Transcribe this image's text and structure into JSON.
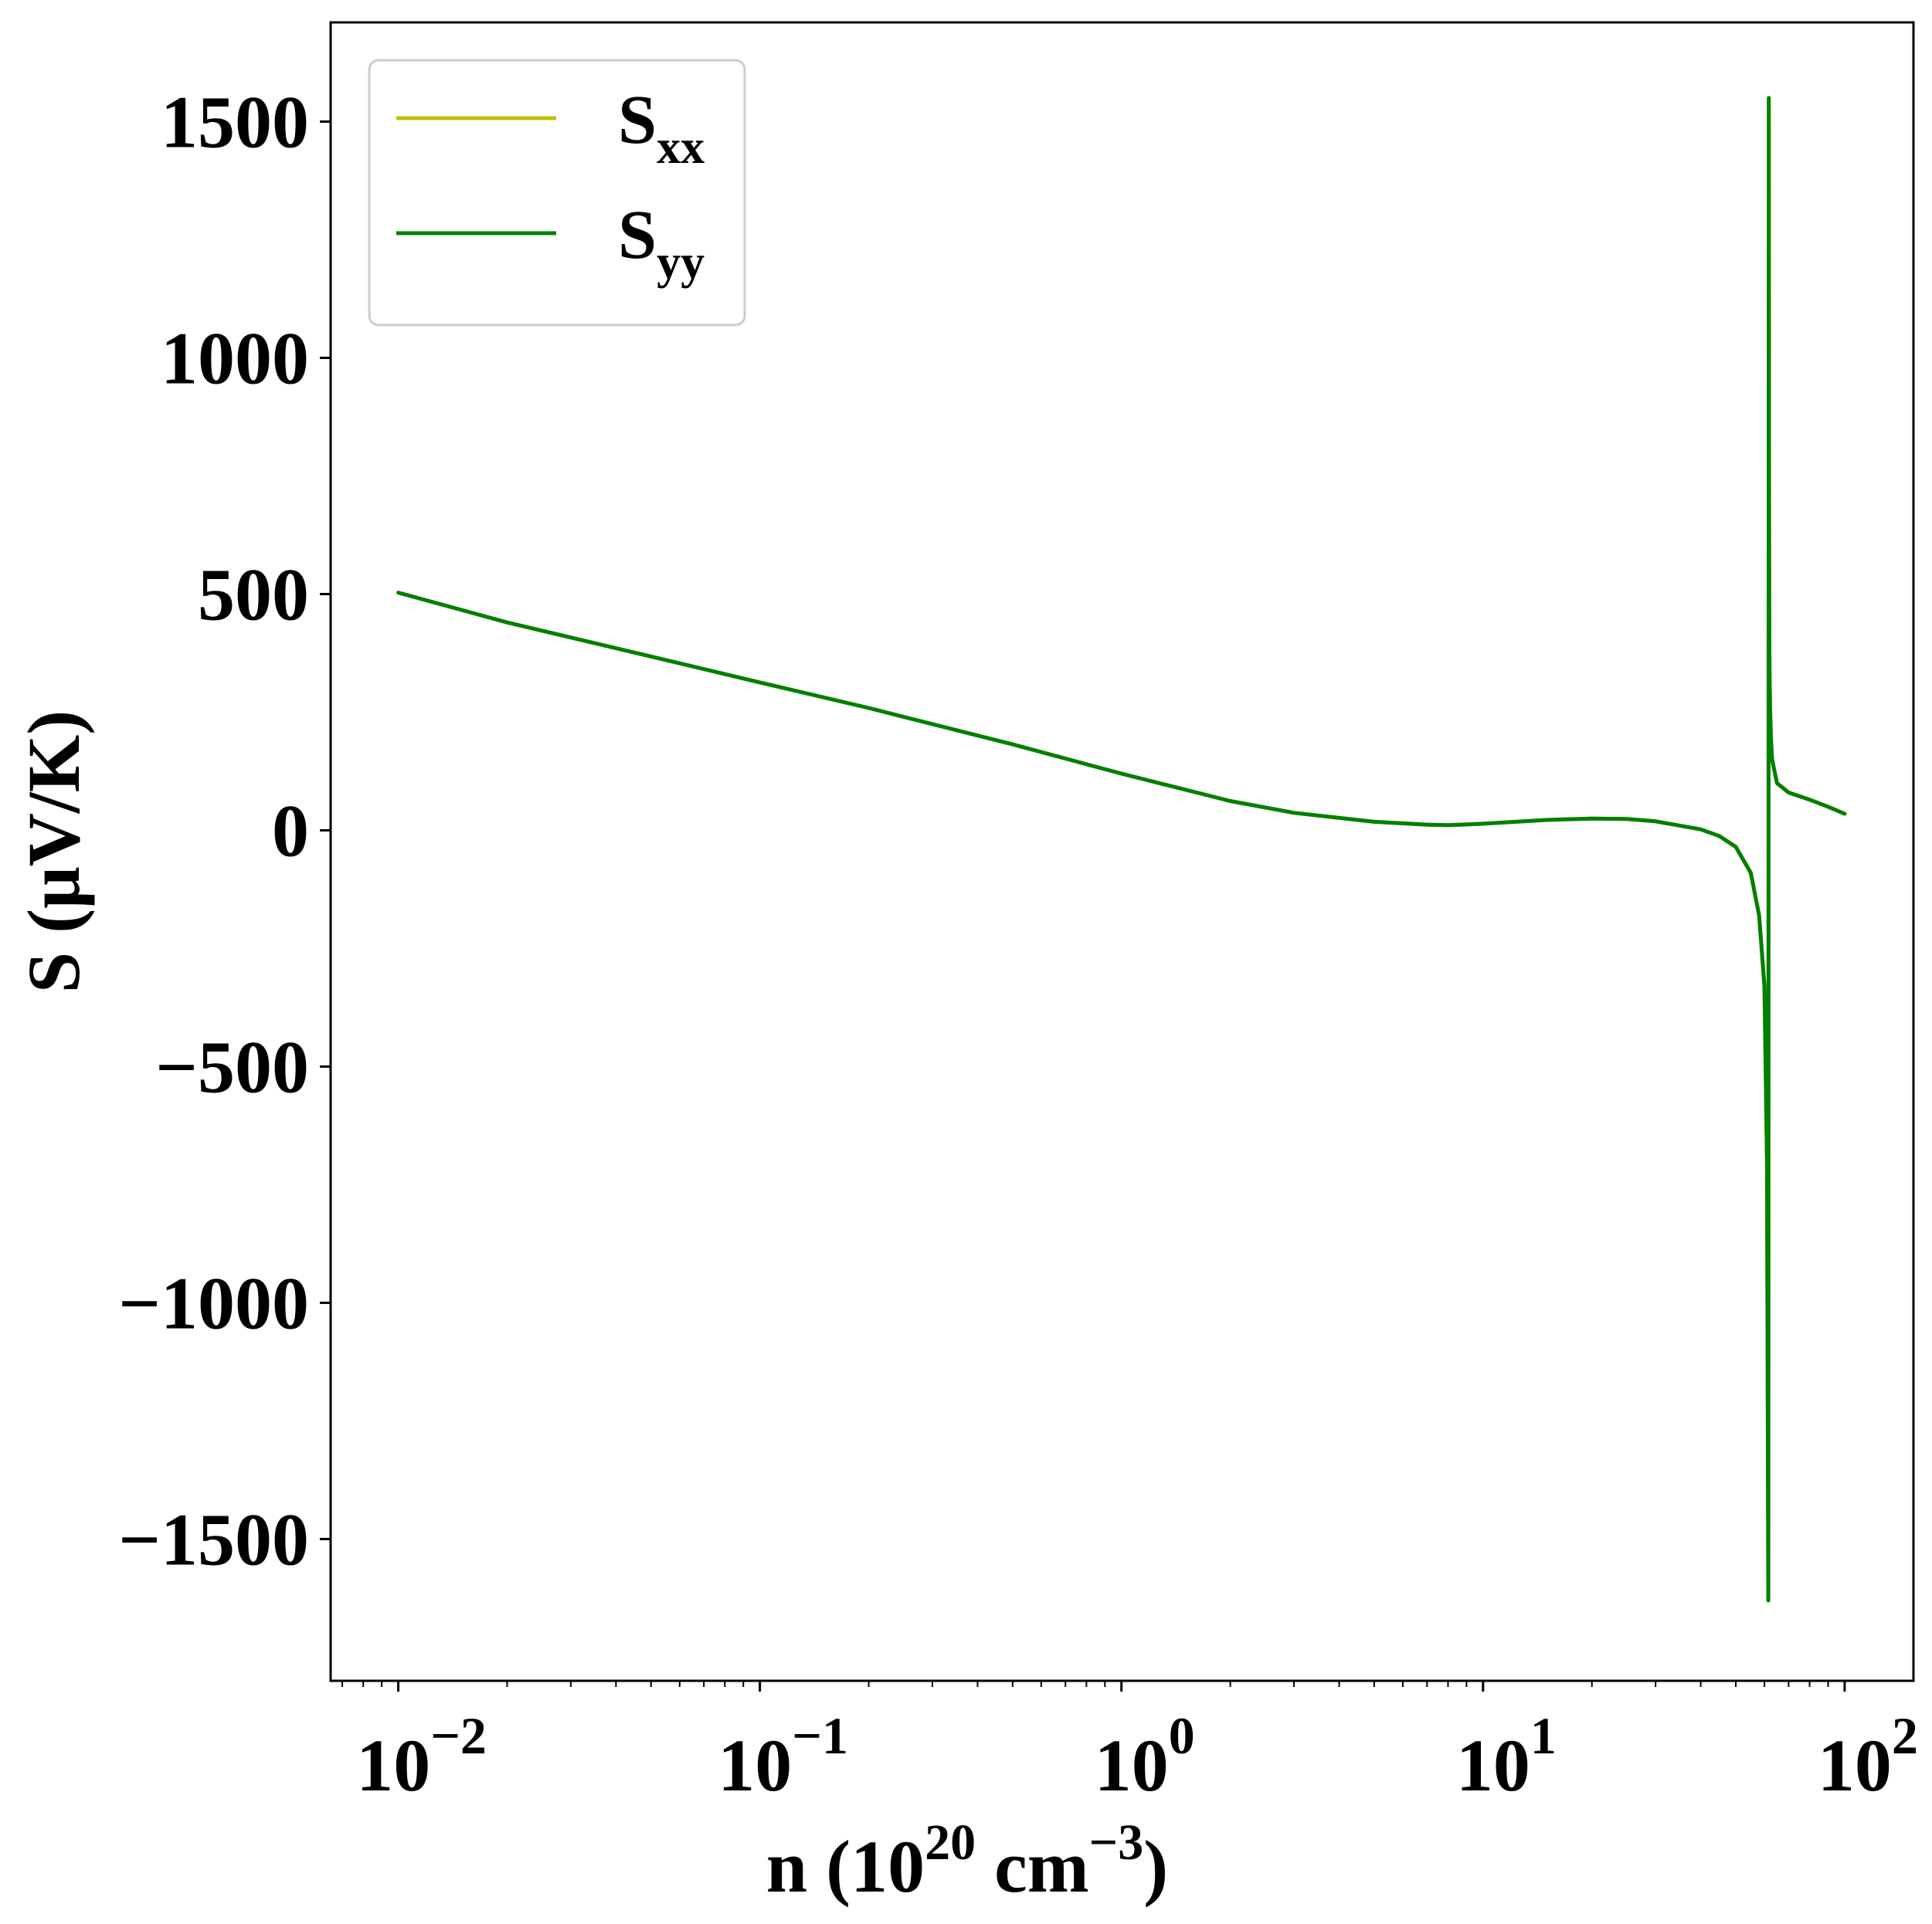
{
  "chart_data": {
    "type": "line",
    "xscale": "log",
    "xlim": [
      0.0065,
      155
    ],
    "ylim": [
      -1800,
      1710
    ],
    "xlabel": {
      "base": "n (10",
      "sup1": "20",
      "mid": " cm",
      "sup2": "−3",
      "end": ")"
    },
    "ylabel": "S (μV/K)",
    "x_ticks": [
      {
        "value": 0.01,
        "base": "10",
        "exp": "−2"
      },
      {
        "value": 0.1,
        "base": "10",
        "exp": "−1"
      },
      {
        "value": 1,
        "base": "10",
        "exp": "0"
      },
      {
        "value": 10,
        "base": "10",
        "exp": "1"
      },
      {
        "value": 100,
        "base": "10",
        "exp": "2"
      }
    ],
    "y_ticks": [
      {
        "value": 1500,
        "label": "1500"
      },
      {
        "value": 1000,
        "label": "1000"
      },
      {
        "value": 500,
        "label": "500"
      },
      {
        "value": 0,
        "label": "0"
      },
      {
        "value": -500,
        "label": "−500"
      },
      {
        "value": -1000,
        "label": "−1000"
      },
      {
        "value": -1500,
        "label": "−1500"
      }
    ],
    "grid": false,
    "legend_position": "top-left",
    "series": [
      {
        "name": "S",
        "subscript": "xx",
        "color": "#bfbf00",
        "x": [
          0.01,
          0.02,
          0.05,
          0.1,
          0.2,
          0.5,
          1,
          2,
          3,
          5,
          7,
          8,
          10,
          15,
          20,
          25,
          30,
          40,
          45,
          50,
          55,
          58,
          60,
          61,
          61.5,
          61.7,
          61.8,
          61.9,
          62,
          62.2,
          62.5,
          63,
          65,
          70,
          80,
          90,
          100
        ],
        "y": [
          503,
          440,
          368,
          313,
          259,
          182,
          120,
          62,
          37,
          18,
          12,
          11,
          14,
          22,
          25,
          24,
          19,
          2,
          -12,
          -35,
          -90,
          -180,
          -330,
          -700,
          -1630,
          1550,
          650,
          420,
          330,
          260,
          200,
          150,
          100,
          80,
          65,
          50,
          35
        ]
      },
      {
        "name": "S",
        "subscript": "yy",
        "color": "#008000",
        "x": [
          0.01,
          0.02,
          0.05,
          0.1,
          0.2,
          0.5,
          1,
          2,
          3,
          5,
          7,
          8,
          10,
          15,
          20,
          25,
          30,
          40,
          45,
          50,
          55,
          58,
          60,
          61,
          61.5,
          61.7,
          61.8,
          61.9,
          62,
          62.2,
          62.5,
          63,
          65,
          70,
          80,
          90,
          100
        ],
        "y": [
          503,
          440,
          368,
          313,
          259,
          182,
          120,
          62,
          37,
          18,
          12,
          11,
          14,
          22,
          25,
          24,
          19,
          2,
          -12,
          -35,
          -90,
          -180,
          -330,
          -700,
          -1630,
          1550,
          650,
          420,
          330,
          260,
          200,
          150,
          100,
          80,
          65,
          50,
          35
        ]
      }
    ]
  }
}
